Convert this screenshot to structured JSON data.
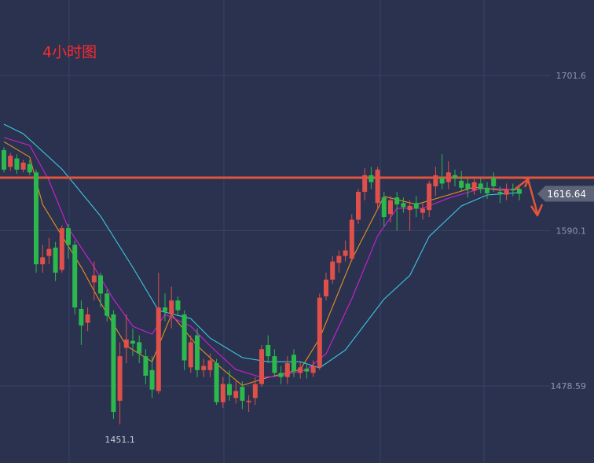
{
  "chart_data": {
    "type": "candlestick",
    "title": "4小时图",
    "ylim": [
      1423.3,
      1755.8
    ],
    "yticks": [
      1701.6,
      1590.1,
      1478.59
    ],
    "up_color": "#e0504a",
    "down_color": "#2db84d",
    "open": [
      1648,
      1636,
      1642,
      1634,
      1638,
      1632,
      1566,
      1572,
      1578,
      1562,
      1592,
      1580,
      1534,
      1524,
      1553,
      1558,
      1545,
      1530,
      1468,
      1506,
      1511,
      1510,
      1500,
      1490,
      1475,
      1535,
      1530,
      1540,
      1530,
      1492,
      1515,
      1490,
      1490,
      1495,
      1467,
      1480,
      1470,
      1478,
      1467,
      1470,
      1480,
      1508,
      1500,
      1488,
      1485,
      1501,
      1488,
      1491,
      1488,
      1492,
      1543,
      1555,
      1567,
      1572,
      1570,
      1598,
      1618,
      1630,
      1610,
      1614,
      1602,
      1614,
      1610,
      1605,
      1610,
      1603,
      1605,
      1622,
      1628,
      1625,
      1630,
      1626,
      1624,
      1619,
      1624,
      1621,
      1628,
      1618,
      1616,
      1620,
      1620
    ],
    "close": [
      1634,
      1644,
      1634,
      1639,
      1632,
      1566,
      1571,
      1577,
      1560,
      1592,
      1580,
      1535,
      1522,
      1530,
      1558,
      1545,
      1529,
      1460,
      1500,
      1512,
      1509,
      1502,
      1486,
      1476,
      1535,
      1532,
      1540,
      1533,
      1497,
      1510,
      1490,
      1493,
      1497,
      1467,
      1480,
      1472,
      1475,
      1468,
      1468,
      1480,
      1505,
      1500,
      1488,
      1485,
      1495,
      1489,
      1492,
      1489,
      1493,
      1542,
      1555,
      1568,
      1572,
      1576,
      1598,
      1618,
      1630,
      1625,
      1634,
      1600,
      1612,
      1609,
      1607,
      1608,
      1606,
      1606,
      1624,
      1630,
      1624,
      1632,
      1628,
      1621,
      1620,
      1625,
      1620,
      1617,
      1622,
      1617,
      1620,
      1619,
      1616.64
    ],
    "high": [
      1650,
      1646,
      1645,
      1641,
      1641,
      1634,
      1580,
      1585,
      1582,
      1594,
      1595,
      1583,
      1540,
      1535,
      1568,
      1560,
      1548,
      1533,
      1510,
      1530,
      1520,
      1515,
      1505,
      1500,
      1560,
      1545,
      1550,
      1543,
      1533,
      1515,
      1520,
      1498,
      1502,
      1498,
      1485,
      1490,
      1482,
      1482,
      1472,
      1485,
      1508,
      1515,
      1505,
      1493,
      1500,
      1505,
      1496,
      1494,
      1497,
      1545,
      1560,
      1572,
      1576,
      1583,
      1602,
      1620,
      1635,
      1636,
      1636,
      1618,
      1615,
      1618,
      1614,
      1612,
      1615,
      1610,
      1626,
      1636,
      1645,
      1640,
      1634,
      1633,
      1628,
      1629,
      1628,
      1625,
      1632,
      1622,
      1624,
      1624,
      1622
    ],
    "low": [
      1632,
      1633,
      1631,
      1632,
      1630,
      1560,
      1560,
      1566,
      1554,
      1560,
      1570,
      1530,
      1508,
      1518,
      1540,
      1535,
      1525,
      1455,
      1451.1,
      1495,
      1500,
      1495,
      1480,
      1470,
      1473,
      1525,
      1520,
      1530,
      1490,
      1488,
      1485,
      1485,
      1485,
      1465,
      1463,
      1468,
      1466,
      1462,
      1460,
      1465,
      1478,
      1495,
      1485,
      1480,
      1480,
      1485,
      1484,
      1484,
      1485,
      1490,
      1540,
      1552,
      1560,
      1568,
      1568,
      1595,
      1612,
      1620,
      1605,
      1593,
      1596,
      1590,
      1603,
      1590,
      1600,
      1598,
      1600,
      1615,
      1620,
      1620,
      1622,
      1618,
      1614,
      1616,
      1617,
      1613,
      1618,
      1610,
      1612,
      1615,
      1612
    ],
    "hline": 1628.2,
    "hline_color": "#e2553a",
    "lines": [
      {
        "color": "#e8901e",
        "x": [
          0,
          4,
          6,
          9,
          12,
          15,
          19,
          23,
          26,
          30,
          34,
          37,
          41,
          46,
          49,
          54,
          59,
          64,
          69,
          73,
          77,
          80
        ],
        "values": [
          1654,
          1643,
          1609,
          1586.4,
          1564,
          1538.4,
          1507.5,
          1496,
          1530,
          1507.5,
          1490.4,
          1479,
          1484.8,
          1490.4,
          1512.8,
          1569.5,
          1614.7,
          1609,
          1615.8,
          1621.4,
          1619.2,
          1620.3
        ]
      },
      {
        "color": "#d21ed6",
        "x": [
          0,
          4,
          7,
          10,
          14,
          17,
          20,
          23,
          25,
          29,
          32,
          36,
          40,
          43,
          47,
          50,
          54,
          58,
          61,
          65,
          69,
          74,
          77,
          80
        ],
        "values": [
          1657,
          1651.4,
          1626,
          1592,
          1564,
          1541,
          1521.5,
          1515.8,
          1530,
          1521.5,
          1507.4,
          1490.4,
          1484.8,
          1485.9,
          1490.4,
          1501.7,
          1541.3,
          1586.4,
          1606.2,
          1606.2,
          1613.5,
          1620.3,
          1620.3,
          1619.2
        ]
      },
      {
        "color": "#3cc8dc",
        "x": [
          0,
          3,
          9,
          15,
          20,
          24,
          29,
          32,
          37,
          41,
          46,
          49,
          53,
          59,
          63,
          66,
          71,
          75,
          80
        ],
        "values": [
          1666.6,
          1659.8,
          1634.4,
          1600.6,
          1563.8,
          1532.8,
          1527,
          1513,
          1499,
          1496,
          1496,
          1491.6,
          1504.5,
          1541,
          1558,
          1586,
          1607.9,
          1615.8,
          1617.5
        ]
      }
    ]
  }
}
